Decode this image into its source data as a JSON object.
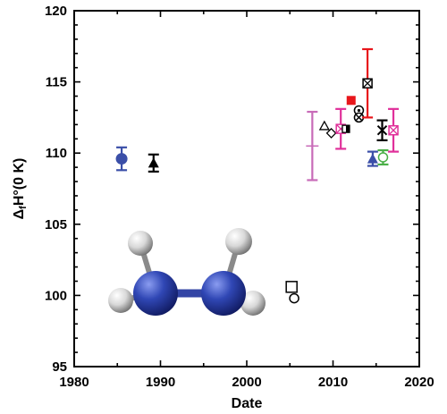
{
  "chart_data": {
    "type": "scatter",
    "title": "",
    "xlabel": "Date",
    "ylabel": {
      "main": "Δ",
      "sub": "f",
      "rest": "H°(0 K)"
    },
    "xlim": [
      1980,
      2020
    ],
    "ylim": [
      95,
      120
    ],
    "xticks": [
      1980,
      1990,
      2000,
      2010,
      2020
    ],
    "yticks": [
      95,
      100,
      105,
      110,
      115,
      120
    ],
    "grid": false,
    "legend": "none",
    "inset": "N2H4 ball-and-stick molecule (blue N, white H)",
    "points": [
      {
        "x": 1985.5,
        "y": 109.6,
        "err": 0.8,
        "marker": "circle-filled",
        "color": "#3b4fa8"
      },
      {
        "x": 1989.2,
        "y": 109.3,
        "err": 0.6,
        "marker": "triangle-filled",
        "color": "#000000"
      },
      {
        "x": 2005.2,
        "y": 100.6,
        "marker": "square-open",
        "color": "#000000"
      },
      {
        "x": 2005.5,
        "y": 99.8,
        "marker": "circle-open",
        "color": "#000000"
      },
      {
        "x": 2007.6,
        "y": 110.5,
        "err": 2.4,
        "marker": "dash",
        "color": "#c86bb8"
      },
      {
        "x": 2009.0,
        "y": 111.9,
        "marker": "triangle-open",
        "color": "#000000"
      },
      {
        "x": 2009.8,
        "y": 111.4,
        "marker": "diamond-open",
        "color": "#000000"
      },
      {
        "x": 2010.9,
        "y": 111.7,
        "err": 1.4,
        "marker": "square-cross",
        "color": "#e0309a"
      },
      {
        "x": 2011.5,
        "y": 111.7,
        "marker": "square-half",
        "color": "#000000"
      },
      {
        "x": 2012.1,
        "y": 113.7,
        "marker": "square-filled",
        "color": "#e8161b"
      },
      {
        "x": 2013.0,
        "y": 113.0,
        "marker": "circle-dot",
        "color": "#000000"
      },
      {
        "x": 2013.0,
        "y": 112.5,
        "marker": "circle-cross",
        "color": "#000000"
      },
      {
        "x": 2014.0,
        "y": 114.9,
        "err": 2.4,
        "marker": "square-cross",
        "color": "#000000",
        "errColor": "#e8161b"
      },
      {
        "x": 2014.6,
        "y": 109.6,
        "err": 0.5,
        "marker": "triangle-filled",
        "color": "#3b4fa8"
      },
      {
        "x": 2015.7,
        "y": 111.6,
        "err": 0.7,
        "marker": "x",
        "color": "#000000"
      },
      {
        "x": 2015.8,
        "y": 109.7,
        "err": 0.5,
        "marker": "circle-open",
        "color": "#4bb048"
      },
      {
        "x": 2017.0,
        "y": 111.6,
        "err": 1.5,
        "marker": "square-cross",
        "color": "#e0309a"
      }
    ]
  }
}
